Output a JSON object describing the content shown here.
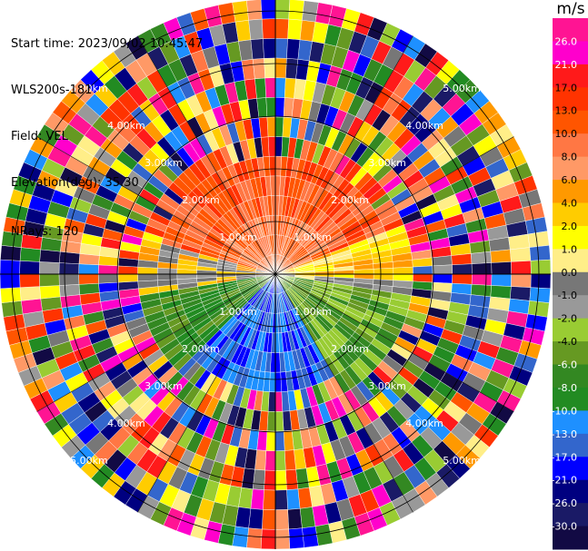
{
  "header": {
    "start_time": "Start time: 2023/09/02 10:45:47",
    "instrument": "WLS200s-181",
    "field": "Field: VEL",
    "elevation": "Elevation(deg): 35.30",
    "nrays": "NRays: 120"
  },
  "chart_data": {
    "type": "polar-ppi",
    "field": "VEL",
    "units": "m/s",
    "nrays": 120,
    "range_rings_km": [
      1.0,
      2.0,
      3.0,
      4.0,
      5.0
    ],
    "range_labels": [
      "1.00km",
      "2.00km",
      "3.00km",
      "4.00km",
      "5.00km"
    ],
    "colorbar_ticks": [
      "26.0",
      "21.0",
      "17.0",
      "13.0",
      "10.0",
      "8.0",
      "6.0",
      "4.0",
      "2.0",
      "1.0",
      "0.0",
      "-1.0",
      "-2.0",
      "-4.0",
      "-6.0",
      "-8.0",
      "-10.0",
      "-13.0",
      "-17.0",
      "-21.0",
      "-26.0",
      "-30.0"
    ],
    "colorbar_colors": [
      "#ff1493",
      "#ff00cc",
      "#ff1a1a",
      "#ff3300",
      "#ff5500",
      "#ff7744",
      "#ff9966",
      "#ff9900",
      "#ffcc00",
      "#ffff00",
      "#ffee88",
      "#777777",
      "#999999",
      "#99cc33",
      "#669922",
      "#338822",
      "#228b22",
      "#1e90ff",
      "#3366cc",
      "#0000ff",
      "#000080",
      "#1a1a66",
      "#120a44"
    ],
    "pattern_summary": {
      "north_sector": "positive 8-17 m/s (orange/red) out to ~2.7 km",
      "south_sector": "negative -8 to -13 m/s (blue) out to ~2.3 km",
      "east_near": "positive 1-4 m/s (yellow) near horizon",
      "southeast": "negative -2 to -6 m/s (green)",
      "beyond_2.5km": "noise (random colors)"
    }
  }
}
